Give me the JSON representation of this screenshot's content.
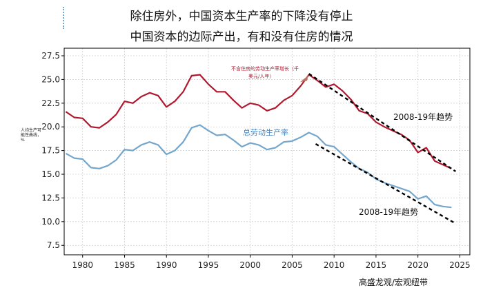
{
  "titles": {
    "line1": "除住房外，中国资本生产率的下降没有停止",
    "line2": "中国资本的边际产出，有和没有住房的情况"
  },
  "source": "高盛龙观/宏观纽带",
  "colors": {
    "red": "#b0182f",
    "blue": "#74a6cc",
    "trend": "#000000",
    "grid": "#cfcfcf"
  },
  "chart_data": {
    "type": "line",
    "ylabel": "人均生产可能性曲线，%",
    "ylim": [
      6.5,
      28.3
    ],
    "xlim": [
      1977.8,
      2026.2
    ],
    "yticks": [
      "7.5",
      "10.0",
      "12.5",
      "15.0",
      "17.5",
      "20.0",
      "22.5",
      "25.0",
      "27.5"
    ],
    "ytick_values": [
      7.5,
      10.0,
      12.5,
      15.0,
      17.5,
      20.0,
      22.5,
      25.0,
      27.5
    ],
    "xticks": [
      "1980",
      "1985",
      "1990",
      "1995",
      "2000",
      "2005",
      "2010",
      "2015",
      "2020",
      "2025"
    ],
    "xtick_values": [
      1980,
      1985,
      1990,
      1995,
      2000,
      2005,
      2010,
      2015,
      2020,
      2025
    ],
    "grid": true,
    "series": [
      {
        "name": "不含住房的劳动生产率增长（千美元/人年）",
        "color": "red",
        "x": [
          1978,
          1979,
          1980,
          1981,
          1982,
          1983,
          1984,
          1985,
          1986,
          1987,
          1988,
          1989,
          1990,
          1991,
          1992,
          1993,
          1994,
          1995,
          1996,
          1997,
          1998,
          1999,
          2000,
          2001,
          2002,
          2003,
          2004,
          2005,
          2006,
          2007,
          2008,
          2009,
          2010,
          2011,
          2012,
          2013,
          2014,
          2015,
          2016,
          2017,
          2018,
          2019,
          2020,
          2021,
          2022,
          2023,
          2024
        ],
        "values": [
          21.6,
          21.0,
          20.9,
          20.0,
          19.9,
          20.5,
          21.3,
          22.7,
          22.5,
          23.2,
          23.6,
          23.3,
          22.1,
          22.7,
          23.7,
          25.4,
          25.5,
          24.5,
          23.7,
          23.7,
          22.8,
          22.0,
          22.5,
          22.3,
          21.7,
          22.0,
          22.8,
          23.3,
          24.3,
          25.5,
          24.9,
          24.2,
          24.5,
          23.8,
          22.9,
          21.7,
          21.4,
          20.5,
          20.0,
          19.6,
          19.2,
          18.6,
          17.3,
          17.8,
          16.4,
          16.0,
          15.6
        ]
      },
      {
        "name": "总劳动生产率",
        "color": "blue",
        "x": [
          1978,
          1979,
          1980,
          1981,
          1982,
          1983,
          1984,
          1985,
          1986,
          1987,
          1988,
          1989,
          1990,
          1991,
          1992,
          1993,
          1994,
          1995,
          1996,
          1997,
          1998,
          1999,
          2000,
          2001,
          2002,
          2003,
          2004,
          2005,
          2006,
          2007,
          2008,
          2009,
          2010,
          2011,
          2012,
          2013,
          2014,
          2015,
          2016,
          2017,
          2018,
          2019,
          2020,
          2021,
          2022,
          2023,
          2024
        ],
        "values": [
          17.2,
          16.7,
          16.6,
          15.7,
          15.6,
          15.9,
          16.5,
          17.6,
          17.5,
          18.1,
          18.4,
          18.1,
          17.1,
          17.5,
          18.4,
          19.9,
          20.2,
          19.6,
          19.1,
          19.2,
          18.6,
          17.9,
          18.3,
          18.1,
          17.6,
          17.8,
          18.4,
          18.5,
          18.9,
          19.4,
          19.0,
          18.1,
          17.9,
          17.1,
          16.3,
          15.6,
          15.2,
          14.5,
          14.1,
          13.8,
          13.5,
          13.2,
          12.4,
          12.7,
          11.8,
          11.6,
          11.5
        ]
      }
    ],
    "trends": [
      {
        "label": "2008-19年趋势",
        "x": [
          2007.0,
          2024.5
        ],
        "values": [
          25.6,
          15.3
        ]
      },
      {
        "label": "2008-19年趋势",
        "x": [
          2007.8,
          2024.5
        ],
        "values": [
          18.2,
          9.8
        ]
      }
    ],
    "annotations": {
      "red_series_label": "不含住房的劳动生产率增长（千美元/人年）",
      "red_series_label_line1": "不含住房的劳动生产率增长（千",
      "red_series_label_line2": "美元/人年）",
      "blue_series_label": "总劳动生产率"
    }
  }
}
